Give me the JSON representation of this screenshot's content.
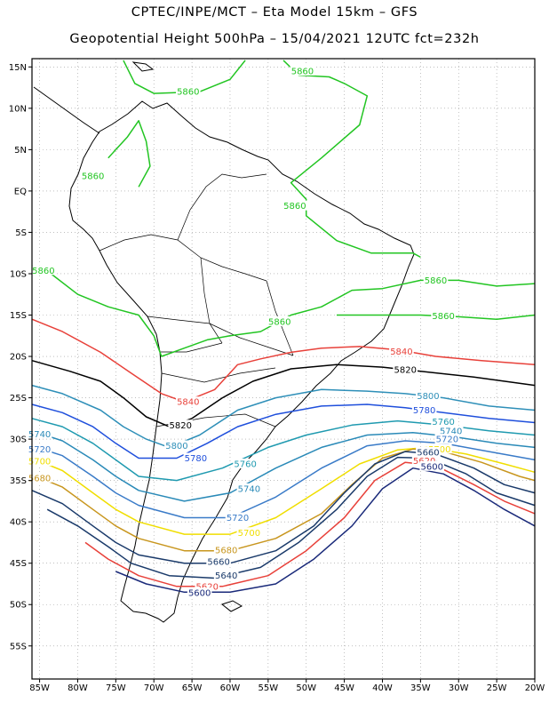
{
  "title_line1": "CPTEC/INPE/MCT –  Eta Model 15km – GFS",
  "title_line2": "Geopotential Height 500hPa – 15/04/2021 12UTC fct=232h",
  "map": {
    "lon_range": [
      -86,
      -20
    ],
    "lat_range": [
      -59,
      16
    ],
    "grid": true,
    "lon_ticks": [
      {
        "value": -85,
        "label": "85W"
      },
      {
        "value": -80,
        "label": "80W"
      },
      {
        "value": -75,
        "label": "75W"
      },
      {
        "value": -70,
        "label": "70W"
      },
      {
        "value": -65,
        "label": "65W"
      },
      {
        "value": -60,
        "label": "60W"
      },
      {
        "value": -55,
        "label": "55W"
      },
      {
        "value": -50,
        "label": "50W"
      },
      {
        "value": -45,
        "label": "45W"
      },
      {
        "value": -40,
        "label": "40W"
      },
      {
        "value": -35,
        "label": "35W"
      },
      {
        "value": -30,
        "label": "30W"
      },
      {
        "value": -25,
        "label": "25W"
      },
      {
        "value": -20,
        "label": "20W"
      }
    ],
    "lat_ticks": [
      {
        "value": 15,
        "label": "15N"
      },
      {
        "value": 10,
        "label": "10N"
      },
      {
        "value": 5,
        "label": "5N"
      },
      {
        "value": 0,
        "label": "EQ"
      },
      {
        "value": -5,
        "label": "5S"
      },
      {
        "value": -10,
        "label": "10S"
      },
      {
        "value": -15,
        "label": "15S"
      },
      {
        "value": -20,
        "label": "20S"
      },
      {
        "value": -25,
        "label": "25S"
      },
      {
        "value": -30,
        "label": "30S"
      },
      {
        "value": -35,
        "label": "35S"
      },
      {
        "value": -40,
        "label": "40S"
      },
      {
        "value": -45,
        "label": "45S"
      },
      {
        "value": -50,
        "label": "50S"
      },
      {
        "value": -55,
        "label": "55S"
      }
    ]
  },
  "contours": [
    {
      "value": "5860",
      "color": "#22c522",
      "points": [
        [
          -76,
          4
        ],
        [
          -73.5,
          6.5
        ],
        [
          -72,
          8.5
        ],
        [
          -71,
          6
        ],
        [
          -70.5,
          3
        ],
        [
          -72,
          0.5
        ]
      ],
      "labels": [
        {
          "text": "5860",
          "lon": -78,
          "lat": 1.8
        }
      ]
    },
    {
      "value": "5860",
      "color": "#22c522",
      "points": [
        [
          -74,
          15.8
        ],
        [
          -72.5,
          13
        ],
        [
          -70,
          11.8
        ],
        [
          -64,
          12
        ],
        [
          -60,
          13.5
        ],
        [
          -58,
          15.8
        ]
      ],
      "labels": [
        {
          "text": "5860",
          "lon": -65.5,
          "lat": 12
        }
      ]
    },
    {
      "value": "5860",
      "color": "#22c522",
      "points": [
        [
          -53,
          15.8
        ],
        [
          -51,
          14
        ],
        [
          -47,
          13.8
        ],
        [
          -45,
          13
        ],
        [
          -42,
          11.5
        ],
        [
          -43,
          8
        ],
        [
          -48,
          4
        ],
        [
          -52,
          1
        ],
        [
          -50,
          -1
        ],
        [
          -50,
          -3
        ],
        [
          -46,
          -6
        ],
        [
          -41.5,
          -7.5
        ],
        [
          -38,
          -7.5
        ],
        [
          -36,
          -7.5
        ],
        [
          -35,
          -8
        ]
      ],
      "labels": [
        {
          "text": "5860",
          "lon": -50.5,
          "lat": 14.5
        },
        {
          "text": "5860",
          "lon": -51.5,
          "lat": -1.8
        }
      ]
    },
    {
      "value": "5860",
      "color": "#22c522",
      "points": [
        [
          -86,
          -9
        ],
        [
          -83.5,
          -10
        ],
        [
          -80,
          -12.5
        ],
        [
          -76,
          -14
        ],
        [
          -72,
          -15
        ],
        [
          -70,
          -17.5
        ],
        [
          -69,
          -20
        ],
        [
          -66,
          -19
        ],
        [
          -63,
          -18
        ],
        [
          -60,
          -17.5
        ],
        [
          -56,
          -17
        ],
        [
          -52,
          -15
        ],
        [
          -48,
          -14
        ],
        [
          -44,
          -12
        ],
        [
          -40,
          -11.8
        ],
        [
          -35,
          -10.8
        ],
        [
          -30,
          -10.8
        ],
        [
          -25,
          -11.5
        ],
        [
          -20,
          -11.2
        ]
      ],
      "labels": [
        {
          "text": "5860",
          "lon": -84.5,
          "lat": -9.6
        },
        {
          "text": "5860",
          "lon": -53.5,
          "lat": -15.8
        },
        {
          "text": "5860",
          "lon": -33,
          "lat": -10.8
        }
      ]
    },
    {
      "value": "5860",
      "color": "#22c522",
      "points": [
        [
          -46,
          -15
        ],
        [
          -40,
          -15
        ],
        [
          -35,
          -15
        ],
        [
          -30,
          -15.2
        ],
        [
          -25,
          -15.5
        ],
        [
          -20,
          -15
        ]
      ],
      "labels": [
        {
          "text": "5860",
          "lon": -32,
          "lat": -15.1
        }
      ]
    },
    {
      "value": "5840",
      "color": "#e8413a",
      "points": [
        [
          -86,
          -15.5
        ],
        [
          -82,
          -17
        ],
        [
          -77,
          -19.5
        ],
        [
          -73,
          -22
        ],
        [
          -69,
          -24.5
        ],
        [
          -66,
          -25.5
        ],
        [
          -62,
          -24
        ],
        [
          -59,
          -21
        ],
        [
          -56,
          -20.3
        ],
        [
          -52,
          -19.5
        ],
        [
          -48,
          -19
        ],
        [
          -43,
          -18.8
        ],
        [
          -38,
          -19.2
        ],
        [
          -33,
          -20
        ],
        [
          -27,
          -20.5
        ],
        [
          -20,
          -21
        ]
      ],
      "labels": [
        {
          "text": "5840",
          "lon": -65.5,
          "lat": -25.5
        },
        {
          "text": "5840",
          "lon": -37.5,
          "lat": -19.4
        }
      ]
    },
    {
      "value": "5820",
      "color": "#000000",
      "points": [
        [
          -86,
          -20.5
        ],
        [
          -81,
          -21.8
        ],
        [
          -77,
          -23
        ],
        [
          -74,
          -25
        ],
        [
          -71,
          -27.3
        ],
        [
          -68,
          -28.5
        ],
        [
          -65,
          -27.5
        ],
        [
          -61,
          -25
        ],
        [
          -57,
          -23
        ],
        [
          -52,
          -21.5
        ],
        [
          -46,
          -21
        ],
        [
          -40,
          -21.3
        ],
        [
          -35,
          -21.8
        ],
        [
          -28,
          -22.5
        ],
        [
          -20,
          -23.5
        ]
      ],
      "labels": [
        {
          "text": "5820",
          "lon": -66.5,
          "lat": -28.3
        },
        {
          "text": "5820",
          "lon": -37,
          "lat": -21.6
        }
      ]
    },
    {
      "value": "5800",
      "color": "#2e8fb8",
      "points": [
        [
          -86,
          -23.5
        ],
        [
          -82,
          -24.5
        ],
        [
          -77,
          -26.5
        ],
        [
          -74,
          -28.5
        ],
        [
          -71,
          -30
        ],
        [
          -68,
          -31
        ],
        [
          -64,
          -29.5
        ],
        [
          -59,
          -26.5
        ],
        [
          -54,
          -25
        ],
        [
          -48,
          -24
        ],
        [
          -42,
          -24.2
        ],
        [
          -37,
          -24.5
        ],
        [
          -32,
          -25
        ],
        [
          -26,
          -26
        ],
        [
          -20,
          -26.5
        ]
      ],
      "labels": [
        {
          "text": "5800",
          "lon": -67,
          "lat": -30.8
        },
        {
          "text": "5800",
          "lon": -34,
          "lat": -24.8
        }
      ]
    },
    {
      "value": "5780",
      "color": "#1f4fdc",
      "points": [
        [
          -86,
          -25.8
        ],
        [
          -82,
          -26.8
        ],
        [
          -78,
          -28.5
        ],
        [
          -75,
          -30.5
        ],
        [
          -72,
          -32.3
        ],
        [
          -67,
          -32.3
        ],
        [
          -63,
          -30.5
        ],
        [
          -59,
          -28.5
        ],
        [
          -54,
          -27
        ],
        [
          -48,
          -26
        ],
        [
          -42,
          -25.8
        ],
        [
          -37,
          -26.2
        ],
        [
          -32,
          -26.8
        ],
        [
          -26,
          -27.5
        ],
        [
          -20,
          -28
        ]
      ],
      "labels": [
        {
          "text": "5780",
          "lon": -64.5,
          "lat": -32.3
        },
        {
          "text": "5780",
          "lon": -34.5,
          "lat": -26.5
        }
      ]
    },
    {
      "value": "5760",
      "color": "#1f9ab0",
      "points": [
        [
          -86,
          -27.5
        ],
        [
          -82,
          -28.5
        ],
        [
          -78,
          -30.5
        ],
        [
          -75,
          -32.5
        ],
        [
          -72,
          -34.5
        ],
        [
          -67,
          -35
        ],
        [
          -61,
          -33.5
        ],
        [
          -55,
          -31
        ],
        [
          -50,
          -29.5
        ],
        [
          -44,
          -28.3
        ],
        [
          -38,
          -27.8
        ],
        [
          -32,
          -28.3
        ],
        [
          -26,
          -29
        ],
        [
          -20,
          -29.5
        ]
      ],
      "labels": [
        {
          "text": "5760",
          "lon": -58,
          "lat": -33
        },
        {
          "text": "5760",
          "lon": -32,
          "lat": -27.9
        }
      ]
    },
    {
      "value": "5740",
      "color": "#2a8ab8",
      "points": [
        [
          -86,
          -29
        ],
        [
          -82,
          -30.2
        ],
        [
          -78,
          -32.5
        ],
        [
          -75,
          -34.5
        ],
        [
          -72,
          -36.2
        ],
        [
          -66,
          -37.5
        ],
        [
          -60,
          -36.5
        ],
        [
          -54,
          -33.5
        ],
        [
          -48,
          -31
        ],
        [
          -42,
          -29.5
        ],
        [
          -36,
          -29.2
        ],
        [
          -30,
          -29.8
        ],
        [
          -25,
          -30.5
        ],
        [
          -20,
          -31
        ]
      ],
      "labels": [
        {
          "text": "5740",
          "lon": -85,
          "lat": -29.4
        },
        {
          "text": "5740",
          "lon": -57.5,
          "lat": -36
        },
        {
          "text": "5740",
          "lon": -31,
          "lat": -29
        }
      ]
    },
    {
      "value": "5720",
      "color": "#3a7bc8",
      "points": [
        [
          -86,
          -30.8
        ],
        [
          -82,
          -32
        ],
        [
          -78,
          -34.5
        ],
        [
          -75,
          -36.5
        ],
        [
          -72,
          -38
        ],
        [
          -66,
          -39.5
        ],
        [
          -60,
          -39.5
        ],
        [
          -54,
          -37
        ],
        [
          -48,
          -33.5
        ],
        [
          -42,
          -30.8
        ],
        [
          -37,
          -30.2
        ],
        [
          -32,
          -30.5
        ],
        [
          -26,
          -31.5
        ],
        [
          -20,
          -32.5
        ]
      ],
      "labels": [
        {
          "text": "5720",
          "lon": -85,
          "lat": -31.2
        },
        {
          "text": "5720",
          "lon": -59,
          "lat": -39.5
        },
        {
          "text": "5720",
          "lon": -31.5,
          "lat": -30
        }
      ]
    },
    {
      "value": "5700",
      "color": "#f0de00",
      "points": [
        [
          -86,
          -32.3
        ],
        [
          -82,
          -33.8
        ],
        [
          -78,
          -36.5
        ],
        [
          -75,
          -38.5
        ],
        [
          -72,
          -40
        ],
        [
          -66,
          -41.5
        ],
        [
          -60,
          -41.5
        ],
        [
          -54,
          -39.5
        ],
        [
          -48,
          -36
        ],
        [
          -43,
          -33
        ],
        [
          -38,
          -31.3
        ],
        [
          -34,
          -31
        ],
        [
          -29,
          -31.8
        ],
        [
          -24,
          -33
        ],
        [
          -20,
          -34
        ]
      ],
      "labels": [
        {
          "text": "5700",
          "lon": -85,
          "lat": -32.7
        },
        {
          "text": "5700",
          "lon": -57.5,
          "lat": -41.3
        },
        {
          "text": "5700",
          "lon": -32.5,
          "lat": -31.2
        }
      ]
    },
    {
      "value": "5680",
      "color": "#c8961e",
      "points": [
        [
          -86,
          -34.3
        ],
        [
          -82,
          -35.8
        ],
        [
          -78,
          -38.5
        ],
        [
          -75,
          -40.5
        ],
        [
          -72,
          -42
        ],
        [
          -66,
          -43.5
        ],
        [
          -60,
          -43.5
        ],
        [
          -54,
          -42
        ],
        [
          -48,
          -39
        ],
        [
          -44,
          -35.5
        ],
        [
          -40,
          -32.3
        ],
        [
          -36,
          -31.2
        ],
        [
          -32,
          -31.5
        ],
        [
          -27,
          -32.8
        ],
        [
          -22,
          -34.5
        ],
        [
          -20,
          -35
        ]
      ],
      "labels": [
        {
          "text": "5680",
          "lon": -85,
          "lat": -34.7
        },
        {
          "text": "5680",
          "lon": -60.5,
          "lat": -43.4
        }
      ]
    },
    {
      "value": "5660",
      "color": "#1a3a6a",
      "points": [
        [
          -86,
          -36.2
        ],
        [
          -82,
          -37.8
        ],
        [
          -78,
          -40.5
        ],
        [
          -75,
          -42.5
        ],
        [
          -72,
          -44
        ],
        [
          -66,
          -45
        ],
        [
          -60,
          -45
        ],
        [
          -54,
          -43.5
        ],
        [
          -49,
          -40.5
        ],
        [
          -45,
          -36.5
        ],
        [
          -41,
          -33
        ],
        [
          -37,
          -31.5
        ],
        [
          -33,
          -31.8
        ],
        [
          -28,
          -33.5
        ],
        [
          -24,
          -35.5
        ],
        [
          -20,
          -36.5
        ]
      ],
      "labels": [
        {
          "text": "5660",
          "lon": -61.5,
          "lat": -44.8
        },
        {
          "text": "5660",
          "lon": -34,
          "lat": -31.6
        }
      ]
    },
    {
      "value": "5640",
      "color": "#1a3a6a",
      "points": [
        [
          -84,
          -38.5
        ],
        [
          -80,
          -40.5
        ],
        [
          -76,
          -43
        ],
        [
          -73,
          -45
        ],
        [
          -68,
          -46.5
        ],
        [
          -62,
          -46.8
        ],
        [
          -56,
          -45.5
        ],
        [
          -51,
          -42.5
        ],
        [
          -46,
          -38.5
        ],
        [
          -42,
          -34.5
        ],
        [
          -38,
          -32.2
        ],
        [
          -34,
          -32.3
        ],
        [
          -29,
          -34.2
        ],
        [
          -25,
          -36.5
        ],
        [
          -20,
          -38
        ]
      ],
      "labels": [
        {
          "text": "5640",
          "lon": -60.5,
          "lat": -46.5
        }
      ]
    },
    {
      "value": "5620",
      "color": "#e8413a",
      "points": [
        [
          -79,
          -42.5
        ],
        [
          -76,
          -44.5
        ],
        [
          -72,
          -46.5
        ],
        [
          -67,
          -47.8
        ],
        [
          -61,
          -47.8
        ],
        [
          -55,
          -46.5
        ],
        [
          -50,
          -43.5
        ],
        [
          -45,
          -39.5
        ],
        [
          -41,
          -35
        ],
        [
          -37,
          -32.8
        ],
        [
          -33,
          -33.2
        ],
        [
          -28,
          -35.5
        ],
        [
          -24,
          -37.5
        ],
        [
          -20,
          -39
        ]
      ],
      "labels": [
        {
          "text": "5620",
          "lon": -63,
          "lat": -47.8
        },
        {
          "text": "5620",
          "lon": -34.5,
          "lat": -32.6
        }
      ]
    },
    {
      "value": "5600",
      "color": "#1a2a7a",
      "points": [
        [
          -75,
          -46
        ],
        [
          -71,
          -47.5
        ],
        [
          -66,
          -48.5
        ],
        [
          -60,
          -48.5
        ],
        [
          -54,
          -47.5
        ],
        [
          -49,
          -44.5
        ],
        [
          -44,
          -40.5
        ],
        [
          -40,
          -36
        ],
        [
          -36,
          -33.5
        ],
        [
          -32,
          -34.2
        ],
        [
          -28,
          -36.2
        ],
        [
          -24,
          -38.5
        ],
        [
          -20,
          -40.5
        ]
      ],
      "labels": [
        {
          "text": "5600",
          "lon": -64,
          "lat": -48.6
        },
        {
          "text": "5600",
          "lon": -33.5,
          "lat": -33.3
        }
      ]
    }
  ]
}
